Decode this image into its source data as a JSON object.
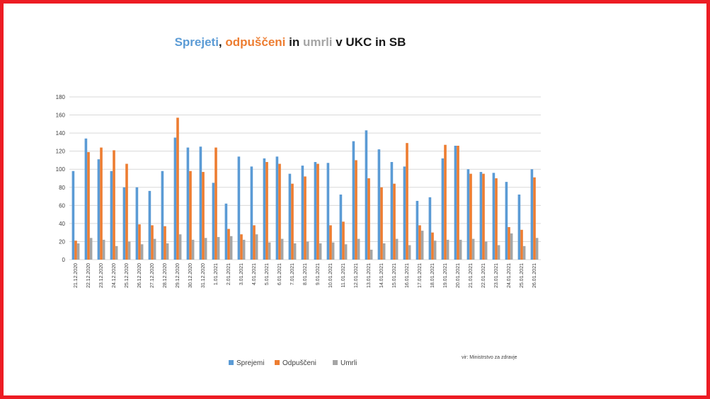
{
  "title": {
    "part1": "Sprejeti",
    "sep1": ", ",
    "part2": "odpuščeni",
    "sep2": " in ",
    "part3": "umrli",
    "rest": " v UKC in SB"
  },
  "source": "vir: Ministrstvo za zdravje",
  "colors": {
    "border": "#ed1c24",
    "grid": "#d9d9d9",
    "title_blue": "#5b9bd5",
    "title_orange": "#ed7d31",
    "title_gray": "#a5a5a5"
  },
  "chart_data": {
    "type": "bar",
    "title": "Sprejeti, odpuščeni in umrli v UKC in SB",
    "xlabel": "",
    "ylabel": "",
    "ylim": [
      0,
      180
    ],
    "yticks": [
      0,
      20,
      40,
      60,
      80,
      100,
      120,
      140,
      160,
      180
    ],
    "grid": true,
    "legend_position": "bottom",
    "categories": [
      "21.12.2020",
      "22.12.2020",
      "23.12.2020",
      "24.12.2020",
      "25.12.2020",
      "26.12.2020",
      "27.12.2020",
      "28.12.2020",
      "29.12.2020",
      "30.12.2020",
      "31.12.2020",
      "1.01.2021",
      "2.01.2021",
      "3.01.2021",
      "4.01.2021",
      "5.01.2021",
      "6.01.2021",
      "7.01.2021",
      "8.01.2021",
      "9.01.2021",
      "10.01.2021",
      "11.01.2021",
      "12.01.2021",
      "13.01.2021",
      "14.01.2021",
      "15.01.2021",
      "16.01.2021",
      "17.01.2021",
      "18.01.2021",
      "19.01.2021",
      "20.01.2021",
      "21.01.2021",
      "22.01.2021",
      "23.01.2021",
      "24.01.2021",
      "25.01.2021",
      "26.01.2021"
    ],
    "series": [
      {
        "name": "Sprejemi",
        "color": "#5b9bd5",
        "values": [
          98,
          134,
          111,
          98,
          80,
          80,
          76,
          98,
          135,
          124,
          125,
          85,
          62,
          114,
          103,
          112,
          114,
          95,
          104,
          108,
          107,
          72,
          131,
          143,
          122,
          108,
          103,
          65,
          69,
          112,
          126,
          100,
          97,
          96,
          86,
          72,
          100
        ]
      },
      {
        "name": "Odpuščeni",
        "color": "#ed7d31",
        "values": [
          21,
          119,
          124,
          121,
          106,
          39,
          38,
          37,
          157,
          98,
          97,
          124,
          34,
          28,
          38,
          108,
          106,
          84,
          92,
          106,
          38,
          42,
          110,
          90,
          80,
          84,
          129,
          38,
          30,
          127,
          126,
          95,
          95,
          90,
          36,
          33,
          91
        ]
      },
      {
        "name": "Umrli",
        "color": "#a5a5a5",
        "values": [
          18,
          24,
          22,
          15,
          20,
          17,
          23,
          18,
          28,
          22,
          24,
          25,
          26,
          22,
          28,
          19,
          23,
          18,
          20,
          18,
          19,
          17,
          23,
          11,
          18,
          23,
          16,
          32,
          21,
          22,
          22,
          23,
          20,
          16,
          29,
          15,
          24
        ]
      }
    ]
  }
}
